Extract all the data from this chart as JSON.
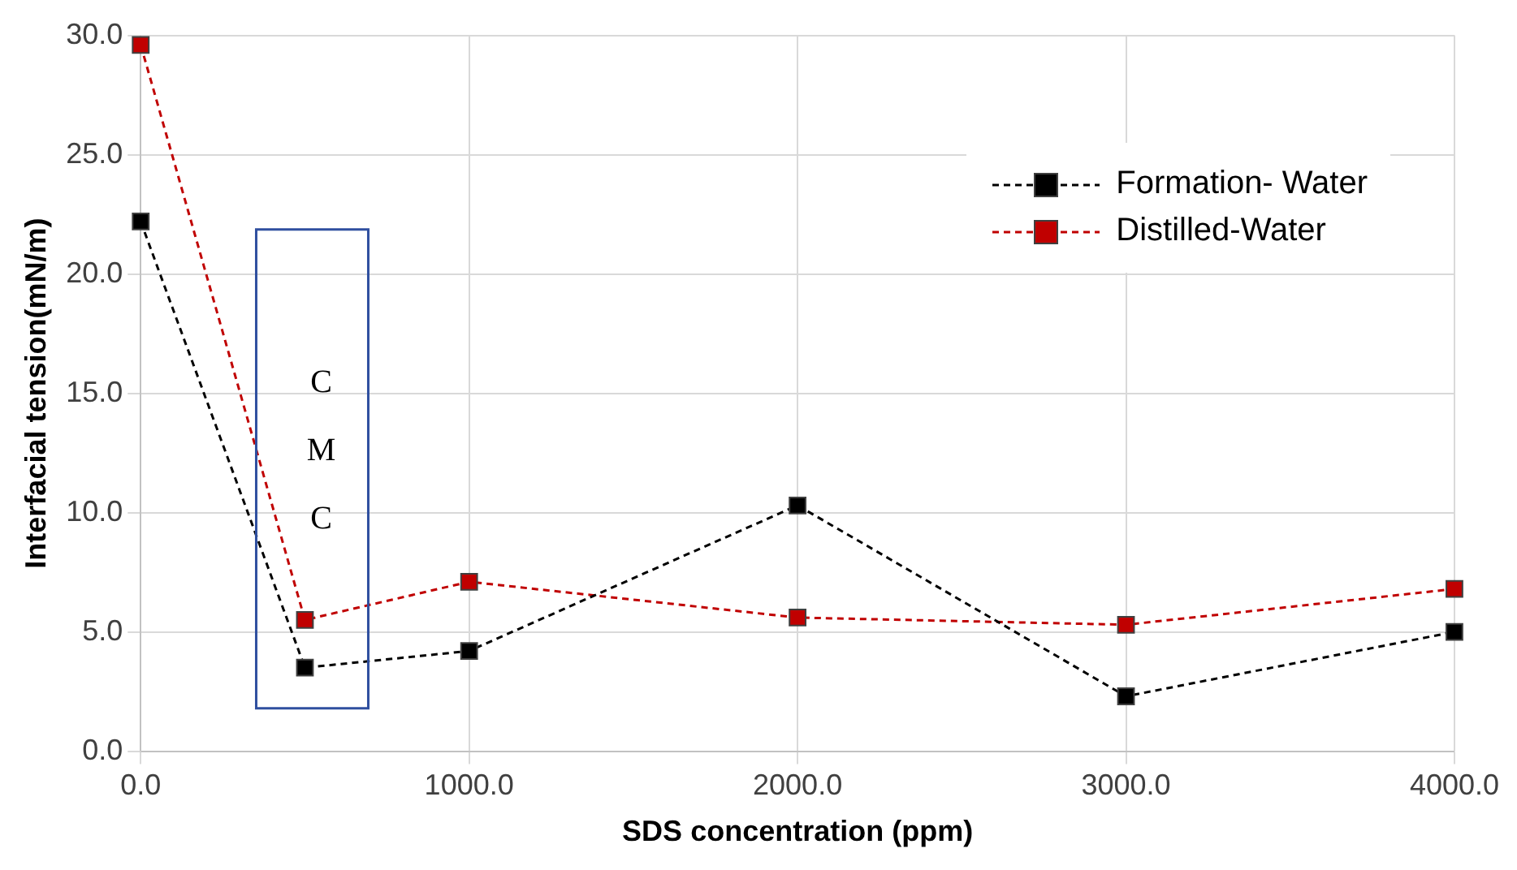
{
  "chart_data": {
    "type": "line",
    "xlabel": "SDS concentration (ppm)",
    "ylabel": "Interfacial tension(mN/m)",
    "x": [
      0,
      500,
      1000,
      2000,
      3000,
      4000
    ],
    "series": [
      {
        "name": "Formation- Water",
        "color": "#000000",
        "values": [
          22.2,
          3.5,
          4.2,
          10.3,
          2.3,
          5.0
        ]
      },
      {
        "name": "Distilled-Water",
        "color": "#c00000",
        "values": [
          29.6,
          5.5,
          7.1,
          5.6,
          5.3,
          6.8
        ]
      }
    ],
    "xlim": [
      0,
      4000
    ],
    "xticks": [
      {
        "value": 0,
        "label": "0.0"
      },
      {
        "value": 1000,
        "label": "1000.0"
      },
      {
        "value": 2000,
        "label": "2000.0"
      },
      {
        "value": 3000,
        "label": "3000.0"
      },
      {
        "value": 4000,
        "label": "4000.0"
      }
    ],
    "ylim": [
      0,
      30
    ],
    "yticks": [
      {
        "value": 0,
        "label": "0.0"
      },
      {
        "value": 5,
        "label": "5.0"
      },
      {
        "value": 10,
        "label": "10.0"
      },
      {
        "value": 15,
        "label": "15.0"
      },
      {
        "value": 20,
        "label": "20.0"
      },
      {
        "value": 25,
        "label": "25.0"
      },
      {
        "value": 30,
        "label": "30.0"
      }
    ],
    "annotations": [
      "CMC"
    ],
    "grid": true,
    "legend": "top right",
    "marker": "square",
    "line_style": "dashed"
  }
}
